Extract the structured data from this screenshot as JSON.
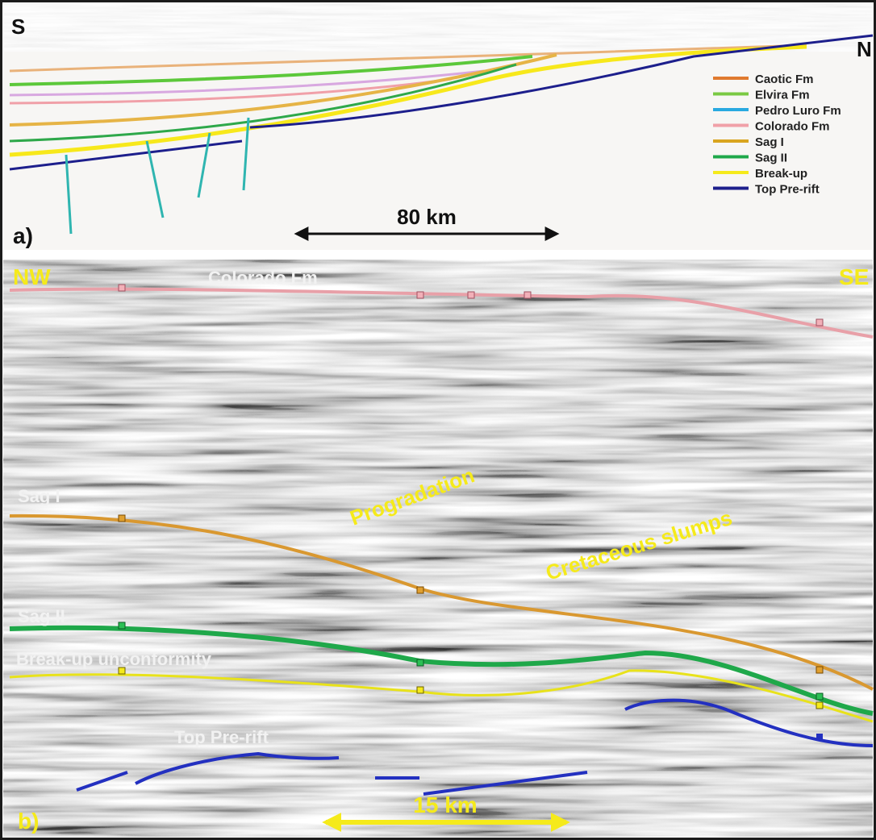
{
  "panel_a": {
    "direction_left": "S",
    "direction_right": "N",
    "panel_label": "a)",
    "scale_label": "80 km",
    "legend": [
      {
        "label": "Caotic Fm",
        "color": "#e07a2f"
      },
      {
        "label": "Elvira Fm",
        "color": "#7ac943"
      },
      {
        "label": "Pedro Luro Fm",
        "color": "#29a9e0"
      },
      {
        "label": "Colorado Fm",
        "color": "#f0a0a8"
      },
      {
        "label": "Sag I",
        "color": "#d9a520"
      },
      {
        "label": "Sag II",
        "color": "#1fa84a"
      },
      {
        "label": "Break-up",
        "color": "#f5ea1b"
      },
      {
        "label": "Top Pre-rift",
        "color": "#1d1f8c"
      }
    ]
  },
  "panel_b": {
    "direction_left": "NW",
    "direction_right": "SE",
    "panel_label": "b)",
    "scale_label": "15 km",
    "labels": {
      "colorado": "Colorado Fm",
      "sag1": "Sag I",
      "sag2": "Sag II",
      "breakup": "Break-up unconformity",
      "prerift": "Top Pre-rift",
      "progradation": "Progradation",
      "slumps": "Cretaceous slumps"
    }
  }
}
